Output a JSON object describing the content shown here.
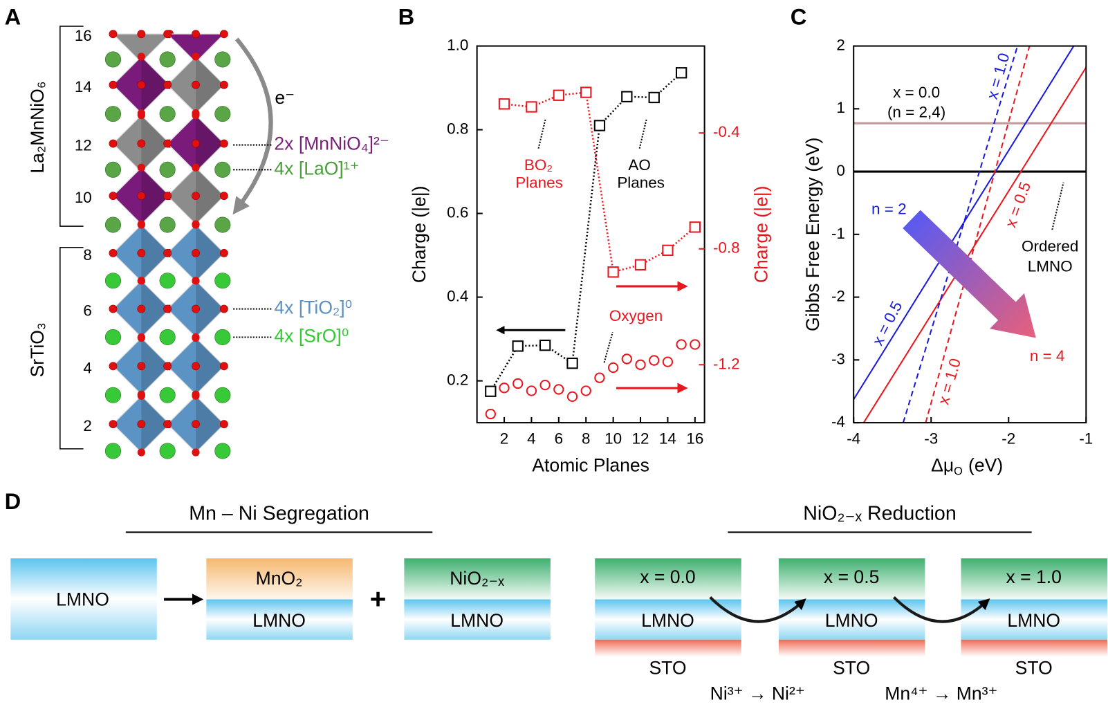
{
  "panel_labels": [
    "A",
    "B",
    "C",
    "D"
  ],
  "panel_a": {
    "plane_labels": [
      16,
      14,
      12,
      10,
      8,
      6,
      4,
      2
    ],
    "film": "La₂MnNiO₆",
    "substrate": "SrTiO₃",
    "electron": "e⁻",
    "layers": [
      "2x [MnNiO₄]²⁻",
      "4x [LaO]¹⁺",
      "4x [TiO₂]⁰",
      "4x [SrO]⁰"
    ]
  },
  "chart_data": [
    {
      "type": "scatter",
      "xlabel": "Atomic Planes",
      "ylabel": "Charge (|e|)",
      "y2label": "Charge (|e|)",
      "y2color": "#e8171f",
      "xlim": [
        0,
        16.7
      ],
      "xticks": [
        2,
        4,
        6,
        8,
        10,
        12,
        14,
        16
      ],
      "ylim": [
        0.1,
        1.0
      ],
      "yticks": [
        0.2,
        0.4,
        0.6,
        0.8,
        {
          "value": 1.0,
          "label": "1.0"
        }
      ],
      "y2lim": [
        -1.4,
        -0.1
      ],
      "y2ticks": [
        -1.2,
        -0.8,
        -0.4
      ],
      "series": [
        {
          "color": "#000000",
          "marker": "square",
          "line": "dotted",
          "x": [
            1,
            3,
            5,
            7,
            9,
            11,
            13,
            15
          ],
          "values": [
            0.175,
            0.283,
            0.285,
            0.242,
            0.81,
            0.879,
            0.877,
            0.936
          ]
        },
        {
          "color": "#e8171f",
          "marker": "square",
          "line": "dotted",
          "axis": "y2",
          "x": [
            2,
            4,
            6,
            8,
            10,
            12,
            14,
            16
          ],
          "values": [
            -0.3,
            -0.31,
            -0.27,
            -0.26,
            -0.88,
            -0.855,
            -0.805,
            -0.725
          ]
        },
        {
          "color": "#e8171f",
          "marker": "circle",
          "axis": "y2",
          "x": [
            1,
            2,
            3,
            4,
            5,
            6,
            7,
            8,
            9,
            10,
            11,
            12,
            13,
            14,
            15,
            16
          ],
          "values": [
            -1.37,
            -1.28,
            -1.265,
            -1.29,
            -1.27,
            -1.285,
            -1.31,
            -1.29,
            -1.245,
            -1.21,
            -1.18,
            -1.2,
            -1.185,
            -1.19,
            -1.13,
            -1.13
          ]
        }
      ],
      "annotations": [
        "BO₂",
        "Planes",
        "AO",
        "Planes",
        "Oxygen"
      ]
    },
    {
      "type": "line",
      "xlabel": [
        "Δμ",
        "O",
        "(eV)"
      ],
      "ylabel": "Gibbs Free Energy (eV)",
      "xlim": [
        -4,
        -1
      ],
      "xticks": [
        -4,
        -3,
        -2,
        -1
      ],
      "ylim": [
        -4,
        2
      ],
      "yticks": [
        -4,
        -3,
        -2,
        -1,
        0,
        1,
        2
      ],
      "series": [
        {
          "color": "#000000",
          "width": 3,
          "x": [
            -4,
            -1
          ],
          "values": [
            0,
            0
          ]
        },
        {
          "color": "#c49a9a",
          "width": 3,
          "x": [
            -4,
            -1
          ],
          "values": [
            0.77,
            0.77
          ]
        },
        {
          "color": "#1a1adb",
          "x": [
            -4,
            -1.16
          ],
          "values": [
            -3.63,
            2
          ]
        },
        {
          "color": "#e8171f",
          "x": [
            -3.87,
            -1.0
          ],
          "values": [
            -4,
            1.66
          ]
        },
        {
          "color": "#1a1adb",
          "dash": true,
          "x": [
            -3.36,
            -1.885
          ],
          "values": [
            -4,
            2
          ]
        },
        {
          "color": "#e8171f",
          "dash": true,
          "x": [
            -3.07,
            -1.73
          ],
          "values": [
            -4,
            2
          ]
        }
      ],
      "annotations": [
        "x = 0.0",
        "(n = 2,4)",
        "x = 1.0",
        "x = 0.5",
        "x = 0.5",
        "x = 1.0",
        "n = 2",
        "n = 4",
        "Ordered",
        "LMNO"
      ]
    }
  ],
  "panel_d": {
    "segregation": {
      "title": "Mn – Ni Segregation",
      "initial": "LMNO",
      "plus": "+",
      "products": [
        {
          "top": "MnO₂",
          "bottom": "LMNO"
        },
        {
          "top": "NiO₂₋ₓ",
          "bottom": "LMNO"
        }
      ]
    },
    "reduction": {
      "title": "NiO₂₋ₓ Reduction",
      "stages": [
        {
          "top": "x = 0.0",
          "middle": "LMNO",
          "bottom": "STO"
        },
        {
          "top": "x = 0.5",
          "middle": "LMNO",
          "bottom": "STO"
        },
        {
          "top": "x = 1.0",
          "middle": "LMNO",
          "bottom": "STO"
        }
      ],
      "steps": [
        "Ni³⁺ → Ni²⁺",
        "Mn⁴⁺ → Mn³⁺"
      ]
    }
  }
}
